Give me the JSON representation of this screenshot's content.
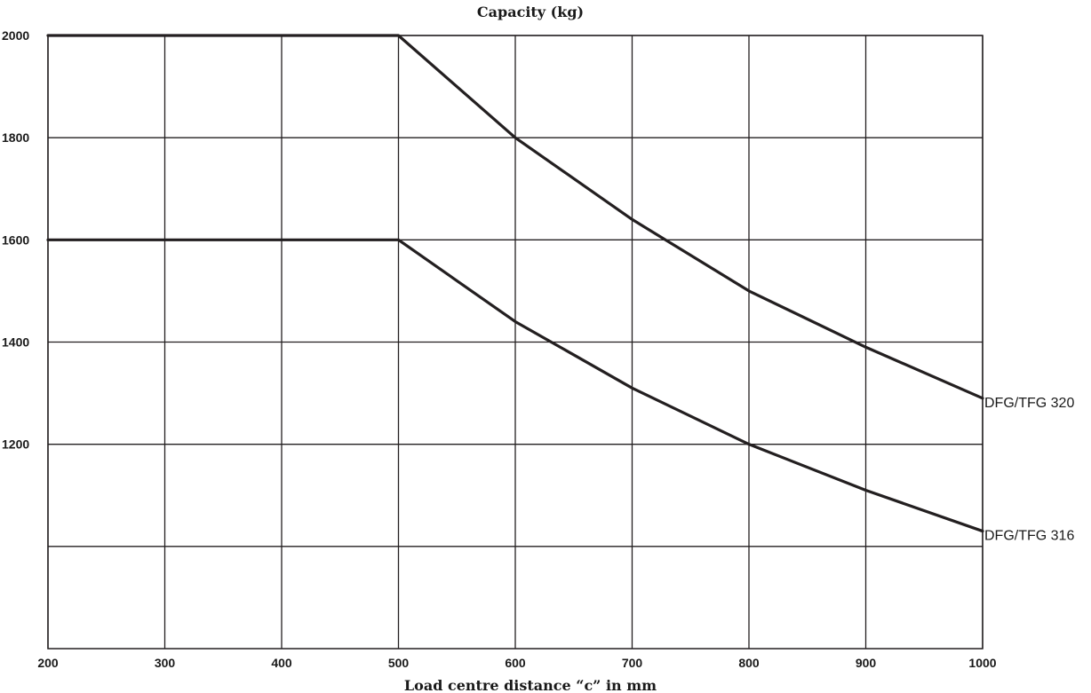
{
  "chart_data": {
    "type": "line",
    "title": "Capacity (kg)",
    "xlabel": "Load centre distance “c” in mm",
    "ylabel": "",
    "xlim": [
      200,
      1000
    ],
    "ylim": [
      800,
      2000
    ],
    "x_ticks": [
      200,
      300,
      400,
      500,
      600,
      700,
      800,
      900,
      1000
    ],
    "y_grid": [
      1000,
      1200,
      1400,
      1600,
      1800,
      2000
    ],
    "y_tick_labels": [
      1200,
      1400,
      1600,
      1800,
      2000
    ],
    "grid": true,
    "line_color": "#231f20",
    "series": [
      {
        "name": "DFG/TFG 320",
        "x": [
          200,
          300,
          400,
          500,
          600,
          700,
          800,
          900,
          1000
        ],
        "values": [
          2000,
          2000,
          2000,
          2000,
          1800,
          1640,
          1500,
          1390,
          1290
        ]
      },
      {
        "name": "DFG/TFG 316",
        "x": [
          200,
          300,
          400,
          500,
          600,
          700,
          800,
          900,
          1000
        ],
        "values": [
          1600,
          1600,
          1600,
          1600,
          1440,
          1310,
          1200,
          1110,
          1030
        ]
      }
    ]
  }
}
